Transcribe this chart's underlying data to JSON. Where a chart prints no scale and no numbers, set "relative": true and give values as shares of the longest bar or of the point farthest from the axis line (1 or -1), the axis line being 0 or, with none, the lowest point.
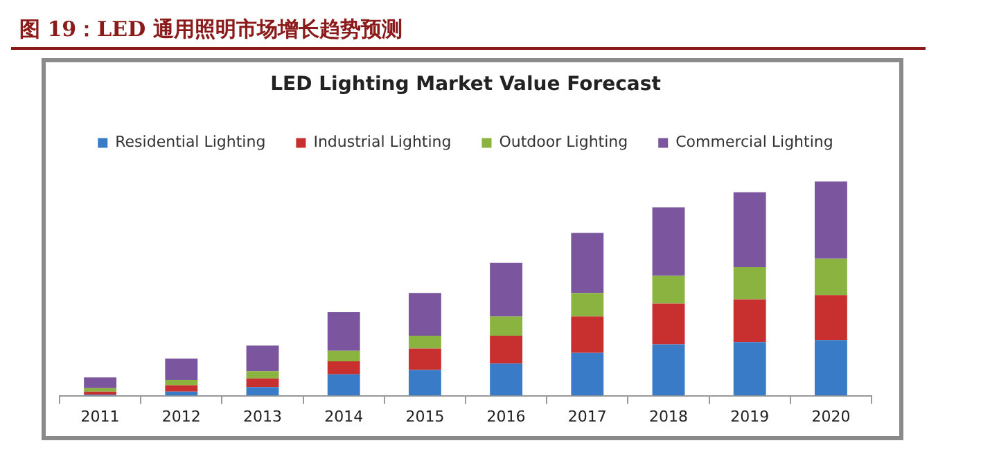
{
  "chart_data": {
    "type": "bar",
    "title": "图 19：LED 通用照明市场增长趋势预测",
    "subtitle": "LED Lighting Market Value Forecast",
    "categories": [
      "2011",
      "2012",
      "2013",
      "2014",
      "2015",
      "2016",
      "2017",
      "2018",
      "2019",
      "2020"
    ],
    "relative": true,
    "stacked": true,
    "legend": "top",
    "series": [
      {
        "name": "Residential Lighting",
        "color": "#3a7bc8",
        "values": [
          0.004,
          0.019,
          0.04,
          0.1,
          0.12,
          0.15,
          0.2,
          0.24,
          0.25,
          0.26
        ]
      },
      {
        "name": "Industrial Lighting",
        "color": "#c8302f",
        "values": [
          0.015,
          0.03,
          0.04,
          0.06,
          0.1,
          0.13,
          0.17,
          0.19,
          0.2,
          0.21
        ]
      },
      {
        "name": "Outdoor Lighting",
        "color": "#8ab33f",
        "values": [
          0.016,
          0.024,
          0.034,
          0.05,
          0.06,
          0.09,
          0.11,
          0.13,
          0.15,
          0.17
        ]
      },
      {
        "name": "Commercial Lighting",
        "color": "#7b569e",
        "values": [
          0.05,
          0.1,
          0.12,
          0.18,
          0.2,
          0.25,
          0.28,
          0.32,
          0.35,
          0.36
        ]
      }
    ]
  }
}
